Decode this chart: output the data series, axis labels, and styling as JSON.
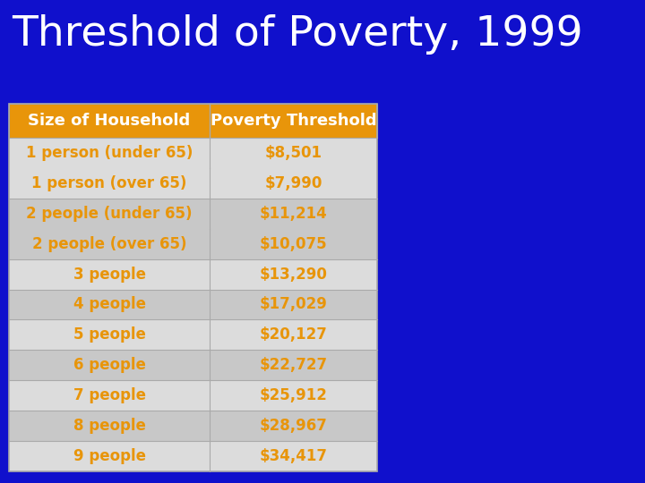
{
  "title": "Threshold of Poverty, 1999",
  "title_color": "#FFFFFF",
  "title_fontsize": 34,
  "background_color": "#1010CC",
  "header": [
    "Size of Household",
    "Poverty Threshold"
  ],
  "header_bg": "#E8950A",
  "header_text_color": "#FFFFFF",
  "rows": [
    [
      "1 person (under 65)",
      "$8,501"
    ],
    [
      "1 person (over 65)",
      "$7,990"
    ],
    [
      "2 people (under 65)",
      "$11,214"
    ],
    [
      "2 people (over 65)",
      "$10,075"
    ],
    [
      "3 people",
      "$13,290"
    ],
    [
      "4 people",
      "$17,029"
    ],
    [
      "5 people",
      "$20,127"
    ],
    [
      "6 people",
      "$22,727"
    ],
    [
      "7 people",
      "$25,912"
    ],
    [
      "8 people",
      "$28,967"
    ],
    [
      "9 people",
      "$34,417"
    ]
  ],
  "row_groups": [
    [
      0,
      1,
      "#DCDCDC"
    ],
    [
      2,
      3,
      "#C8C8C8"
    ],
    [
      4,
      4,
      "#DCDCDC"
    ],
    [
      5,
      5,
      "#C8C8C8"
    ],
    [
      6,
      6,
      "#DCDCDC"
    ],
    [
      7,
      7,
      "#C8C8C8"
    ],
    [
      8,
      8,
      "#DCDCDC"
    ],
    [
      9,
      9,
      "#C8C8C8"
    ],
    [
      10,
      10,
      "#DCDCDC"
    ]
  ],
  "row_text_color": "#E8950A",
  "cell_fontsize": 12,
  "header_fontsize": 13
}
